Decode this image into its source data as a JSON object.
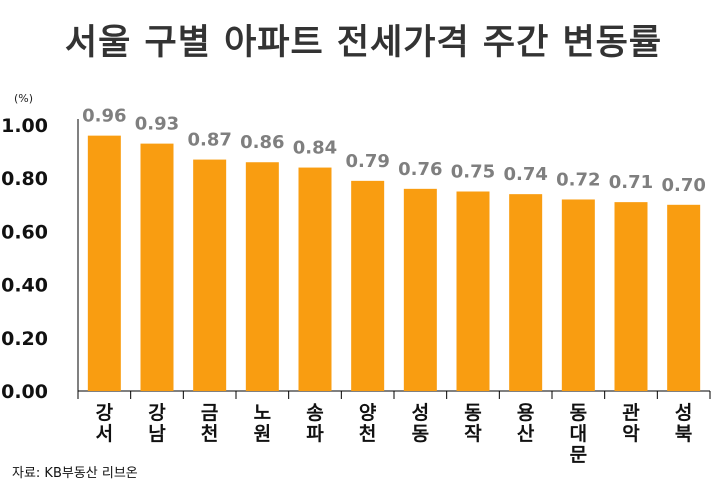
{
  "title": "서울 구별 아파트 전세가격 주간 변동률",
  "unit": "(%)",
  "source": "자료: KB부동산 리브온",
  "colors": {
    "bar": "#F99D11",
    "value_label": "#7F7F7F",
    "axis": "#000000"
  },
  "chart_data": {
    "type": "bar",
    "title": "서울 구별 아파트 전세가격 주간 변동률",
    "xlabel": "",
    "ylabel": "(%)",
    "categories": [
      "강서",
      "강남",
      "금천",
      "노원",
      "송파",
      "양천",
      "성동",
      "동작",
      "용산",
      "동대문",
      "관악",
      "성북"
    ],
    "values": [
      0.96,
      0.93,
      0.87,
      0.86,
      0.84,
      0.79,
      0.76,
      0.75,
      0.74,
      0.72,
      0.71,
      0.7
    ],
    "value_labels": [
      "0.96",
      "0.93",
      "0.87",
      "0.86",
      "0.84",
      "0.79",
      "0.76",
      "0.75",
      "0.74",
      "0.72",
      "0.71",
      "0.70"
    ],
    "ylim": [
      0,
      1.0
    ],
    "yticks": [
      "0.00",
      "0.20",
      "0.40",
      "0.60",
      "0.80",
      "1.00"
    ],
    "grid": false,
    "legend": "none"
  }
}
